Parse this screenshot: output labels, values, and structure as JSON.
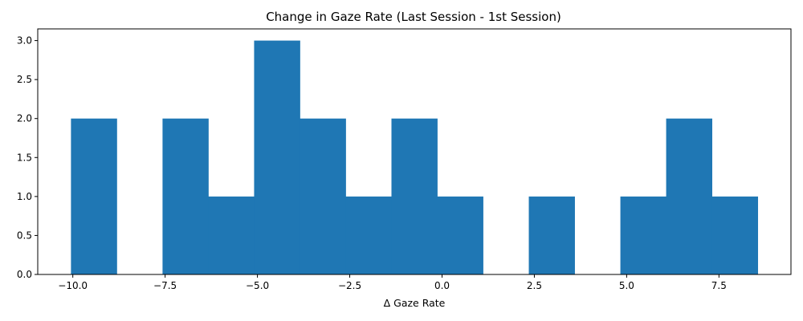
{
  "chart_data": {
    "type": "bar",
    "title": "Change in Gaze Rate (Last Session - 1st Session)",
    "xlabel": "Δ Gaze Rate",
    "ylabel": "",
    "xlim": [
      -10.95,
      9.45
    ],
    "ylim": [
      0,
      3.15
    ],
    "x_ticks": [
      -10.0,
      -7.5,
      -5.0,
      -2.5,
      0.0,
      2.5,
      5.0,
      7.5
    ],
    "x_tick_labels": [
      "−10.0",
      "−7.5",
      "−5.0",
      "−2.5",
      "0.0",
      "2.5",
      "5.0",
      "7.5"
    ],
    "y_ticks": [
      0.0,
      0.5,
      1.0,
      1.5,
      2.0,
      2.5,
      3.0
    ],
    "y_tick_labels": [
      "0.0",
      "0.5",
      "1.0",
      "1.5",
      "2.0",
      "2.5",
      "3.0"
    ],
    "bins": [
      [
        -10.05,
        -8.81
      ],
      [
        -8.81,
        -7.57
      ],
      [
        -7.57,
        -6.33
      ],
      [
        -6.33,
        -5.09
      ],
      [
        -5.09,
        -3.85
      ],
      [
        -3.85,
        -2.61
      ],
      [
        -2.61,
        -1.37
      ],
      [
        -1.37,
        -0.13
      ],
      [
        -0.13,
        1.11
      ],
      [
        1.11,
        2.35
      ],
      [
        2.35,
        3.59
      ],
      [
        3.59,
        4.83
      ],
      [
        4.83,
        6.07
      ],
      [
        6.07,
        7.31
      ],
      [
        7.31,
        8.55
      ]
    ],
    "values": [
      2,
      0,
      2,
      1,
      3,
      2,
      1,
      2,
      1,
      0,
      1,
      0,
      1,
      2,
      1
    ],
    "grid": false,
    "bar_color": "#1f77b4"
  }
}
